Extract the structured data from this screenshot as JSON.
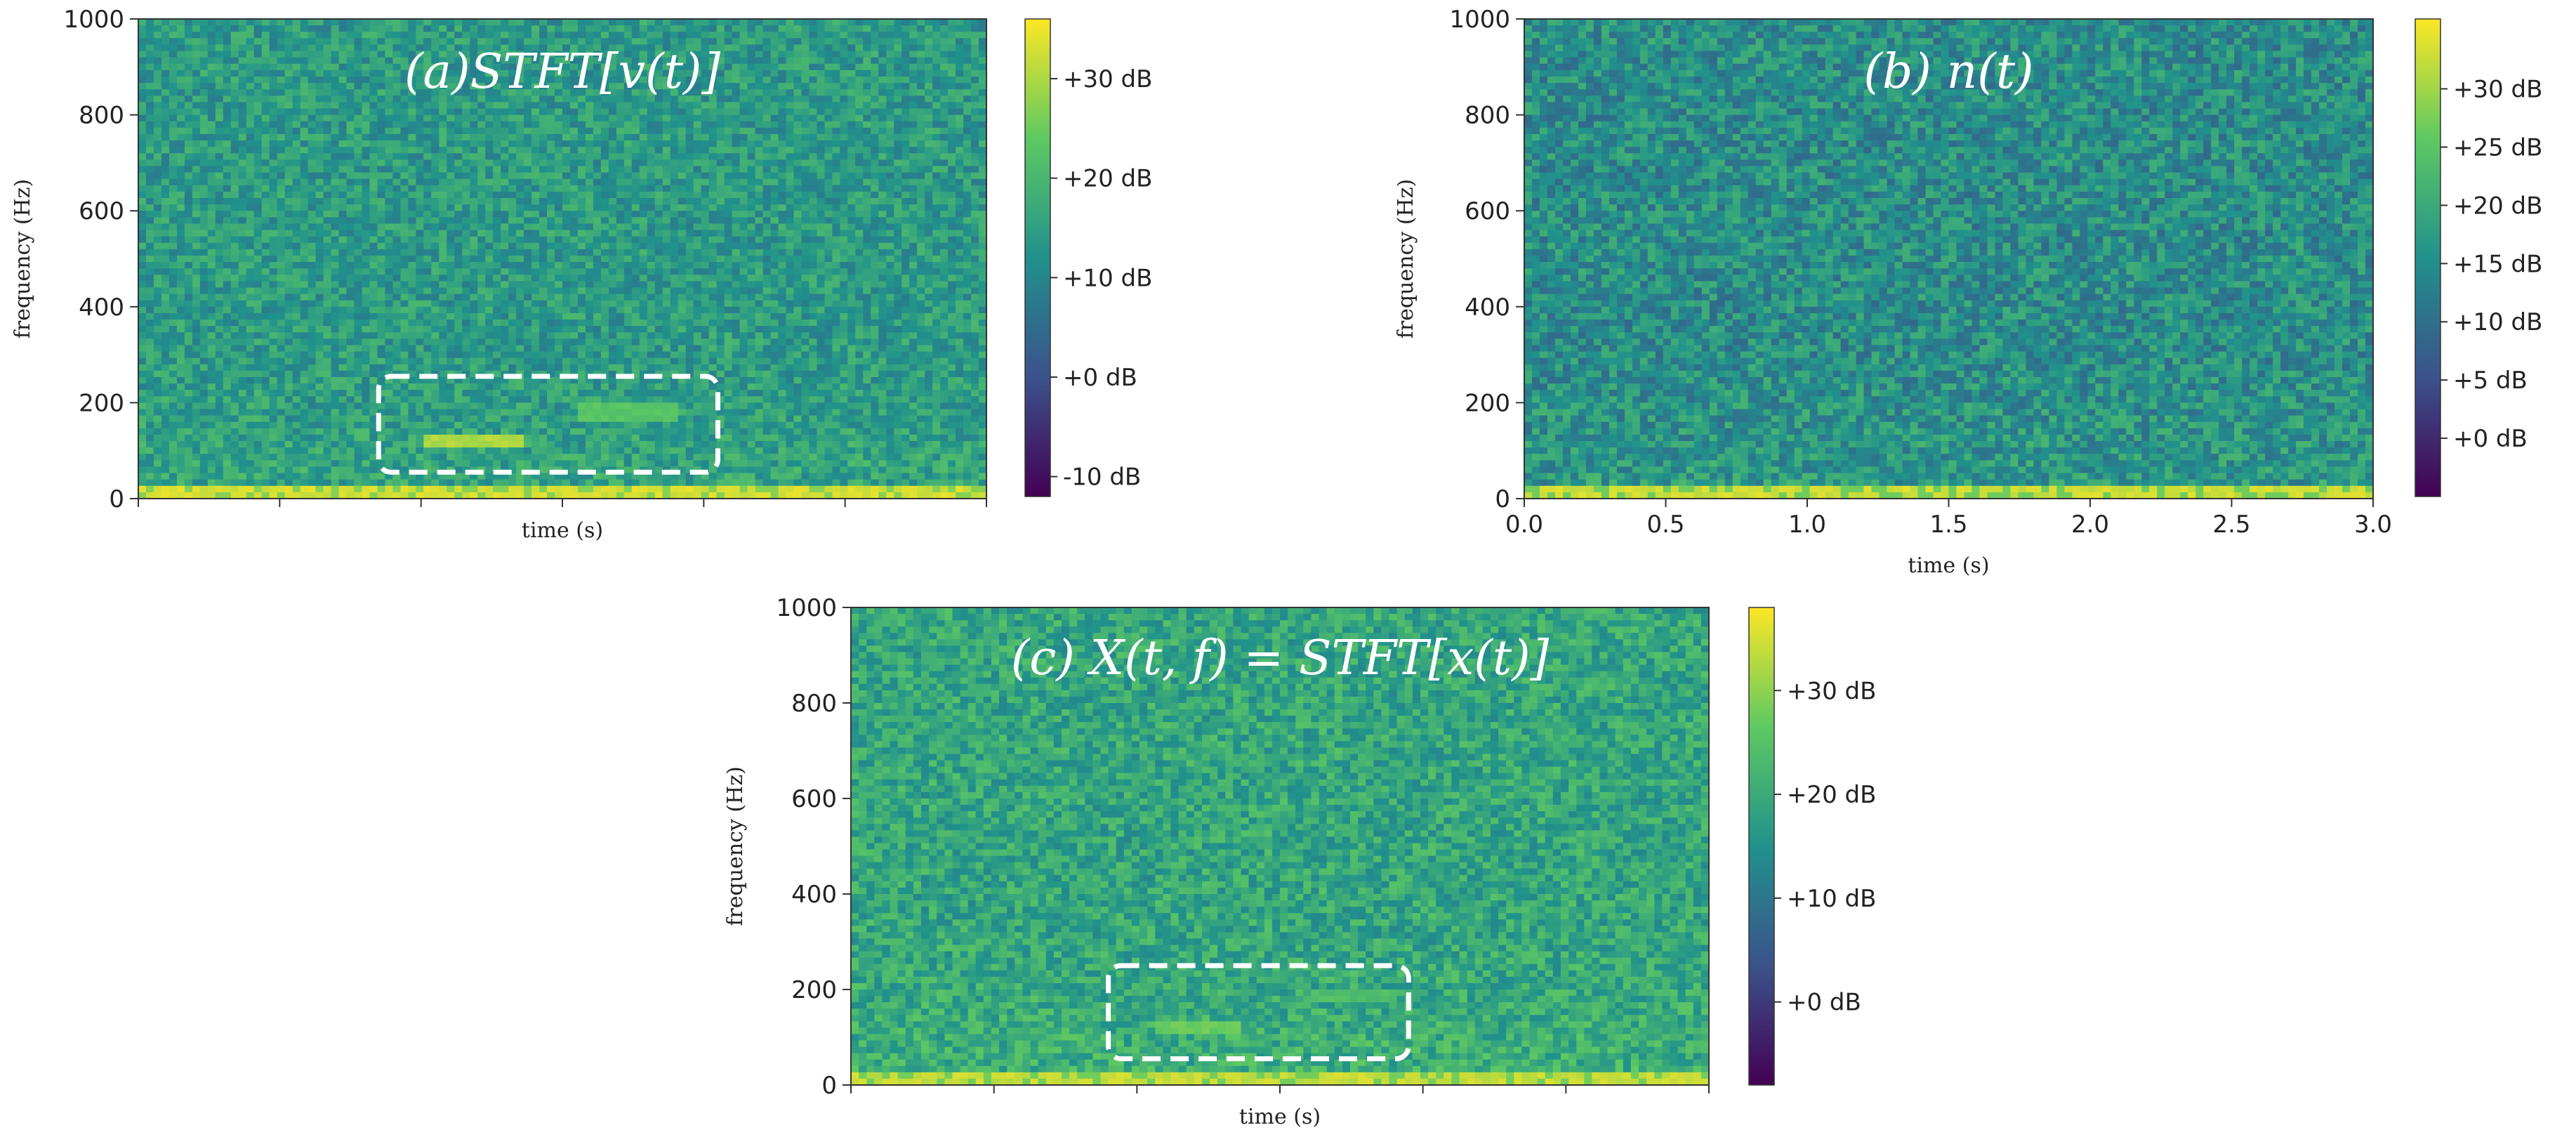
{
  "figure": {
    "panel_count": 3,
    "colormap": "viridis",
    "colormap_stops": [
      "#440154",
      "#3b528b",
      "#21918c",
      "#5ec962",
      "#fde725"
    ]
  },
  "chart_data": [
    {
      "id": "a",
      "type": "heatmap",
      "title": "(a)STFT[v(t)]",
      "xlabel": "time (s)",
      "ylabel": "frequency (Hz)",
      "xlim": [
        0,
        3.0
      ],
      "ylim": [
        0,
        1000
      ],
      "yticks": [
        0,
        200,
        400,
        600,
        800,
        1000
      ],
      "ytick_labels": [
        "0",
        "200",
        "400",
        "600",
        "800",
        "1000"
      ],
      "xticks": [
        0,
        0.5,
        1.0,
        1.5,
        2.0,
        2.5,
        3.0
      ],
      "xtick_labels": [
        "",
        "",
        "",
        "",
        "",
        "",
        ""
      ],
      "colorbar": {
        "range_db": [
          -12,
          36
        ],
        "ticks": [
          -10,
          0,
          10,
          20,
          30
        ],
        "tick_labels": [
          "-10 dB",
          "+0 dB",
          "+10 dB",
          "+20 dB",
          "+30 dB"
        ]
      },
      "background_db": 14,
      "highlight_box": {
        "t0": 0.85,
        "t1": 2.05,
        "f0": 55,
        "f1": 255
      },
      "features": [
        {
          "name": "low-frequency band",
          "f0": 0,
          "f1": 30,
          "db": 33
        },
        {
          "name": "harmonic feature",
          "t0": 1.0,
          "t1": 1.35,
          "f0": 100,
          "f1": 135,
          "db": 30
        },
        {
          "name": "faint trace",
          "t0": 1.55,
          "t1": 1.9,
          "f0": 160,
          "f1": 200,
          "db": 23
        }
      ]
    },
    {
      "id": "b",
      "type": "heatmap",
      "title": "(b) n(t)",
      "xlabel": "time (s)",
      "ylabel": "frequency (Hz)",
      "xlim": [
        0,
        3.0
      ],
      "ylim": [
        0,
        1000
      ],
      "yticks": [
        0,
        200,
        400,
        600,
        800,
        1000
      ],
      "ytick_labels": [
        "0",
        "200",
        "400",
        "600",
        "800",
        "1000"
      ],
      "xticks": [
        0,
        0.5,
        1.0,
        1.5,
        2.0,
        2.5,
        3.0
      ],
      "xtick_labels": [
        "0.0",
        "0.5",
        "1.0",
        "1.5",
        "2.0",
        "2.5",
        "3.0"
      ],
      "colorbar": {
        "range_db": [
          -5,
          36
        ],
        "ticks": [
          0,
          5,
          10,
          15,
          20,
          25,
          30
        ],
        "tick_labels": [
          "+0 dB",
          "+5 dB",
          "+10 dB",
          "+15 dB",
          "+20 dB",
          "+25 dB",
          "+30 dB"
        ]
      },
      "background_db": 15,
      "features": [
        {
          "name": "low-frequency band",
          "f0": 0,
          "f1": 25,
          "db": 33
        }
      ]
    },
    {
      "id": "c",
      "type": "heatmap",
      "title": "(c) X(t, f) = STFT[x(t)]",
      "xlabel": "time (s)",
      "ylabel": "frequency (Hz)",
      "xlim": [
        0,
        3.0
      ],
      "ylim": [
        0,
        1000
      ],
      "yticks": [
        0,
        200,
        400,
        600,
        800,
        1000
      ],
      "ytick_labels": [
        "0",
        "200",
        "400",
        "600",
        "800",
        "1000"
      ],
      "xticks": [
        0,
        0.5,
        1.0,
        1.5,
        2.0,
        2.5,
        3.0
      ],
      "xtick_labels": [
        "",
        "",
        "",
        "",
        "",
        "",
        ""
      ],
      "colorbar": {
        "range_db": [
          -8,
          38
        ],
        "ticks": [
          0,
          10,
          20,
          30
        ],
        "tick_labels": [
          "+0 dB",
          "+10 dB",
          "+20 dB",
          "+30 dB"
        ]
      },
      "background_db": 19,
      "highlight_box": {
        "t0": 0.9,
        "t1": 1.95,
        "f0": 55,
        "f1": 250
      },
      "features": [
        {
          "name": "low-frequency band",
          "f0": 0,
          "f1": 28,
          "db": 34
        },
        {
          "name": "harmonic feature",
          "t0": 1.05,
          "t1": 1.35,
          "f0": 100,
          "f1": 130,
          "db": 27
        },
        {
          "name": "faint trace",
          "t0": 1.6,
          "t1": 1.9,
          "f0": 170,
          "f1": 200,
          "db": 24
        }
      ]
    }
  ]
}
